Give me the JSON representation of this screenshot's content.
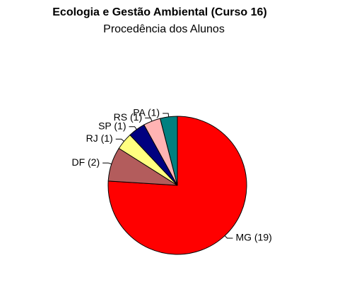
{
  "chart_data": {
    "type": "pie",
    "title": "Ecologia e Gestão Ambiental (Curso 16)",
    "subtitle": "Procedência dos Alunos",
    "categories": [
      "MG (19)",
      "DF (2)",
      "RJ (1)",
      "SP (1)",
      "RS (1)",
      "PA (1)"
    ],
    "values": [
      19,
      2,
      1,
      1,
      1,
      1
    ],
    "colors": [
      "#ff0000",
      "#b35c5c",
      "#ffff80",
      "#000080",
      "#ffb3b3",
      "#008080"
    ]
  }
}
